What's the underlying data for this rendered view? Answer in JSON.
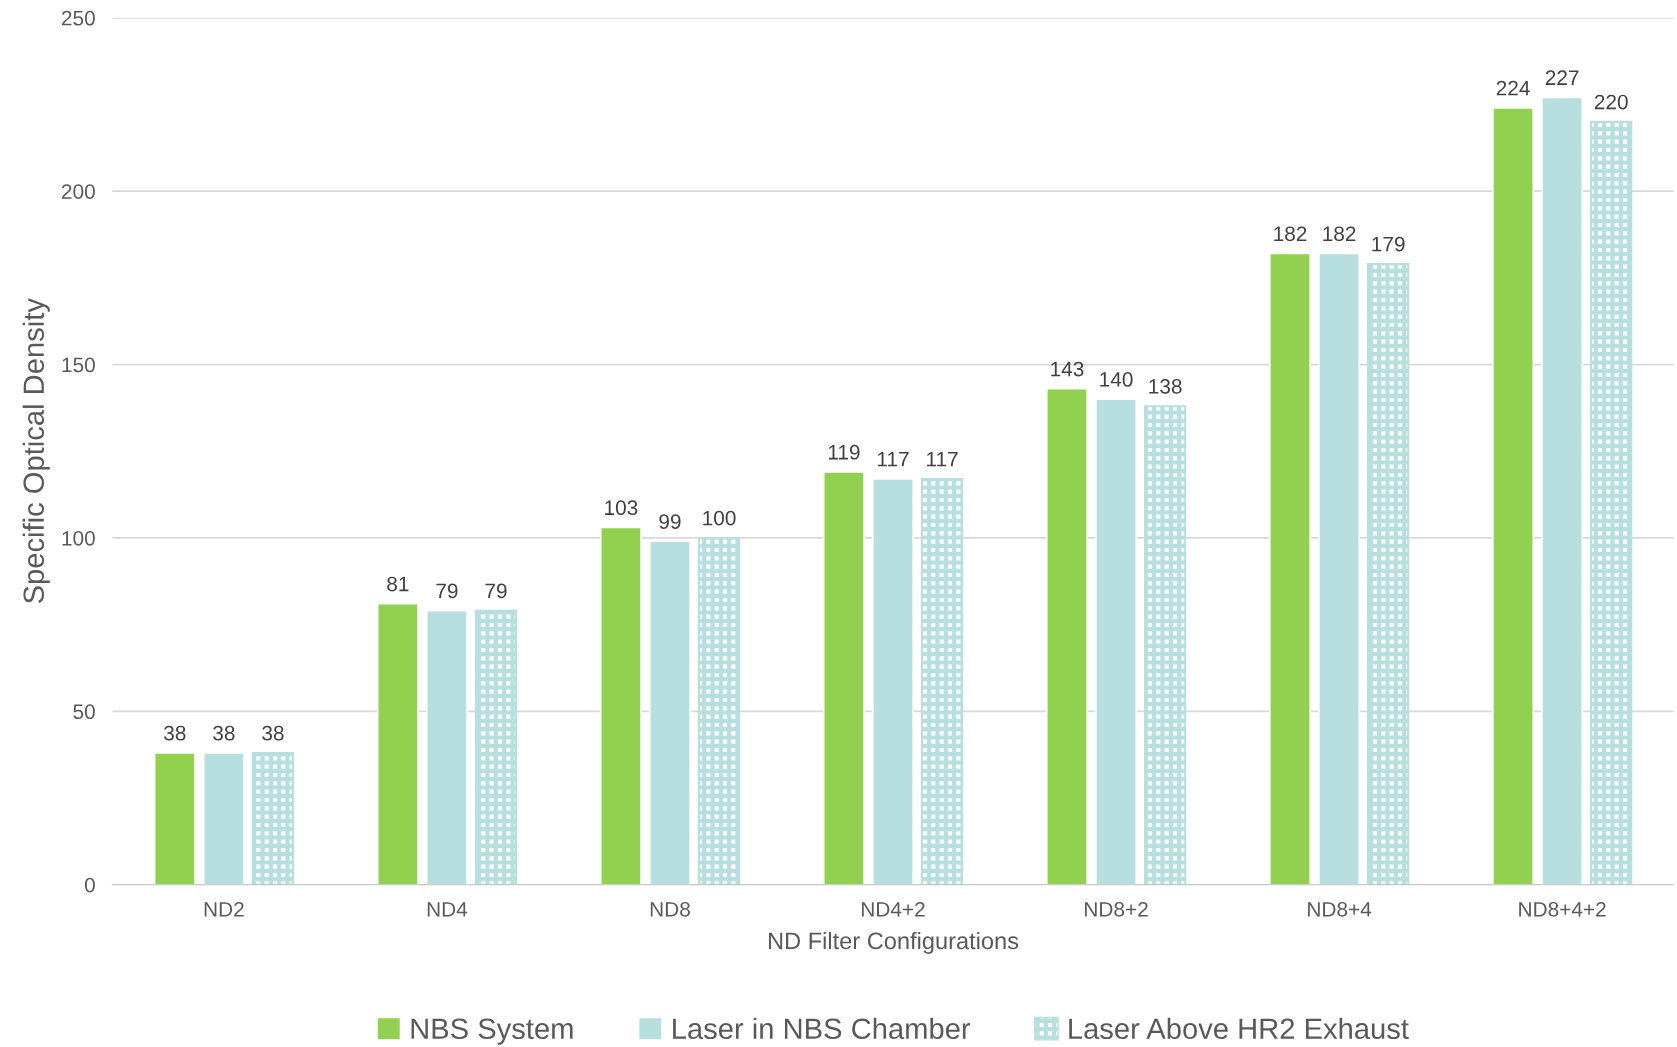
{
  "chart_data": {
    "type": "bar",
    "xlabel": "ND Filter Configurations",
    "ylabel": "Specific Optical Density",
    "categories": [
      "ND2",
      "ND4",
      "ND8",
      "ND4+2",
      "ND8+2",
      "ND8+4",
      "ND8+4+2"
    ],
    "series": [
      {
        "name": "NBS System",
        "color": "#92d050",
        "values": [
          38,
          81,
          103,
          119,
          143,
          182,
          224
        ]
      },
      {
        "name": "Laser in NBS Chamber",
        "color": "#b7dfe0",
        "values": [
          38,
          79,
          99,
          117,
          140,
          182,
          227
        ]
      },
      {
        "name": "Laser Above HR2 Exhaust",
        "color": "#b7dfe0",
        "values": [
          38,
          79,
          100,
          117,
          138,
          179,
          220
        ]
      }
    ],
    "ylim": [
      0,
      250
    ],
    "yticks": [
      0,
      50,
      100,
      150,
      200,
      250
    ],
    "grid": "y",
    "legend": "bottom",
    "data_labels": true
  }
}
